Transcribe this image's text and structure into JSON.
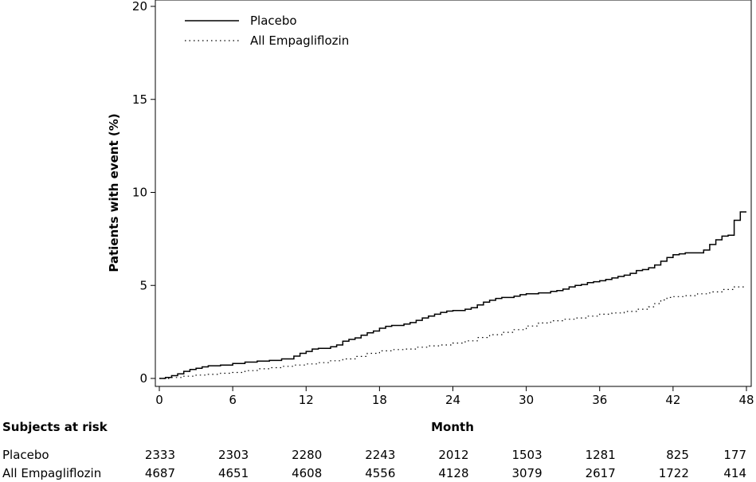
{
  "chart_data": {
    "type": "line",
    "ylabel": "Patients with event (%)",
    "xlabel": "Month",
    "xlim": [
      0,
      48
    ],
    "ylim": [
      0,
      20
    ],
    "x_ticks": [
      0,
      6,
      12,
      18,
      24,
      30,
      36,
      42,
      48
    ],
    "y_ticks": [
      0,
      5,
      10,
      15,
      20
    ],
    "x_tick_labels": [
      "0",
      "6",
      "12",
      "18",
      "24",
      "30",
      "36",
      "42",
      "48"
    ],
    "y_tick_labels": [
      "0",
      "5",
      "10",
      "15",
      "20"
    ],
    "grid": false,
    "legend_position": "top-left",
    "series": [
      {
        "name": "Placebo",
        "style": "solid",
        "color": "#000000",
        "step": true,
        "points": [
          [
            0,
            0
          ],
          [
            0.5,
            0.05
          ],
          [
            1,
            0.15
          ],
          [
            1.5,
            0.25
          ],
          [
            2,
            0.38
          ],
          [
            2.5,
            0.48
          ],
          [
            3,
            0.55
          ],
          [
            3.5,
            0.62
          ],
          [
            4,
            0.68
          ],
          [
            5,
            0.72
          ],
          [
            6,
            0.8
          ],
          [
            7,
            0.88
          ],
          [
            8,
            0.93
          ],
          [
            9,
            0.97
          ],
          [
            10,
            1.05
          ],
          [
            11,
            1.2
          ],
          [
            11.5,
            1.35
          ],
          [
            12,
            1.45
          ],
          [
            12.5,
            1.58
          ],
          [
            13,
            1.62
          ],
          [
            14,
            1.7
          ],
          [
            14.5,
            1.8
          ],
          [
            15,
            2.0
          ],
          [
            15.5,
            2.1
          ],
          [
            16,
            2.18
          ],
          [
            16.5,
            2.32
          ],
          [
            17,
            2.45
          ],
          [
            17.5,
            2.55
          ],
          [
            18,
            2.7
          ],
          [
            18.5,
            2.8
          ],
          [
            19,
            2.85
          ],
          [
            20,
            2.92
          ],
          [
            20.5,
            3.0
          ],
          [
            21,
            3.12
          ],
          [
            21.5,
            3.25
          ],
          [
            22,
            3.35
          ],
          [
            22.5,
            3.45
          ],
          [
            23,
            3.55
          ],
          [
            23.5,
            3.62
          ],
          [
            24,
            3.65
          ],
          [
            25,
            3.72
          ],
          [
            25.5,
            3.8
          ],
          [
            26,
            3.95
          ],
          [
            26.5,
            4.1
          ],
          [
            27,
            4.2
          ],
          [
            27.5,
            4.3
          ],
          [
            28,
            4.35
          ],
          [
            29,
            4.42
          ],
          [
            29.5,
            4.5
          ],
          [
            30,
            4.55
          ],
          [
            31,
            4.6
          ],
          [
            32,
            4.68
          ],
          [
            32.5,
            4.72
          ],
          [
            33,
            4.8
          ],
          [
            33.5,
            4.92
          ],
          [
            34,
            5.0
          ],
          [
            34.5,
            5.05
          ],
          [
            35,
            5.15
          ],
          [
            35.5,
            5.2
          ],
          [
            36,
            5.25
          ],
          [
            36.5,
            5.32
          ],
          [
            37,
            5.4
          ],
          [
            37.5,
            5.48
          ],
          [
            38,
            5.55
          ],
          [
            38.5,
            5.65
          ],
          [
            39,
            5.8
          ],
          [
            39.5,
            5.85
          ],
          [
            40,
            5.95
          ],
          [
            40.5,
            6.1
          ],
          [
            41,
            6.3
          ],
          [
            41.5,
            6.5
          ],
          [
            42,
            6.65
          ],
          [
            42.5,
            6.7
          ],
          [
            43,
            6.75
          ],
          [
            44,
            6.75
          ],
          [
            44.5,
            6.9
          ],
          [
            45,
            7.2
          ],
          [
            45.5,
            7.45
          ],
          [
            46,
            7.65
          ],
          [
            46.5,
            7.7
          ],
          [
            47,
            8.5
          ],
          [
            47.5,
            8.95
          ],
          [
            48,
            8.95
          ]
        ]
      },
      {
        "name": "All Empagliflozin",
        "style": "dotted",
        "color": "#000000",
        "step": true,
        "points": [
          [
            0,
            0
          ],
          [
            1,
            0.05
          ],
          [
            2,
            0.12
          ],
          [
            3,
            0.18
          ],
          [
            4,
            0.22
          ],
          [
            5,
            0.28
          ],
          [
            6,
            0.32
          ],
          [
            7,
            0.42
          ],
          [
            8,
            0.52
          ],
          [
            9,
            0.58
          ],
          [
            10,
            0.65
          ],
          [
            11,
            0.72
          ],
          [
            12,
            0.78
          ],
          [
            13,
            0.85
          ],
          [
            14,
            0.95
          ],
          [
            15,
            1.05
          ],
          [
            16,
            1.18
          ],
          [
            17,
            1.35
          ],
          [
            18,
            1.48
          ],
          [
            19,
            1.55
          ],
          [
            20,
            1.58
          ],
          [
            21,
            1.68
          ],
          [
            22,
            1.75
          ],
          [
            23,
            1.8
          ],
          [
            24,
            1.9
          ],
          [
            25,
            2.02
          ],
          [
            26,
            2.2
          ],
          [
            27,
            2.35
          ],
          [
            28,
            2.48
          ],
          [
            29,
            2.62
          ],
          [
            30,
            2.82
          ],
          [
            31,
            2.98
          ],
          [
            32,
            3.1
          ],
          [
            33,
            3.18
          ],
          [
            34,
            3.25
          ],
          [
            35,
            3.35
          ],
          [
            36,
            3.45
          ],
          [
            37,
            3.52
          ],
          [
            38,
            3.6
          ],
          [
            39,
            3.72
          ],
          [
            40,
            3.85
          ],
          [
            40.5,
            4.02
          ],
          [
            41,
            4.22
          ],
          [
            41.5,
            4.35
          ],
          [
            42,
            4.4
          ],
          [
            43,
            4.45
          ],
          [
            44,
            4.55
          ],
          [
            45,
            4.65
          ],
          [
            46,
            4.78
          ],
          [
            47,
            4.92
          ],
          [
            48,
            4.92
          ]
        ]
      }
    ],
    "risk_table": {
      "title": "Subjects at risk",
      "months": [
        0,
        6,
        12,
        18,
        24,
        30,
        36,
        42,
        48
      ],
      "rows": [
        {
          "label": "Placebo",
          "values": [
            "2333",
            "2303",
            "2280",
            "2243",
            "2012",
            "1503",
            "1281",
            "825",
            "177"
          ]
        },
        {
          "label": "All Empagliflozin",
          "values": [
            "4687",
            "4651",
            "4608",
            "4556",
            "4128",
            "3079",
            "2617",
            "1722",
            "414"
          ]
        }
      ]
    }
  }
}
